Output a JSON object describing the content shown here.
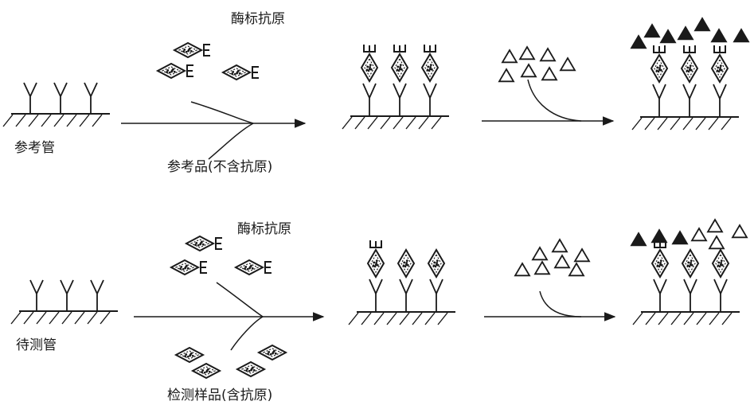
{
  "top_row": {
    "tube_label": "参考管",
    "enzyme_label": "酶标抗原",
    "sample_label": "参考品(不含抗原)"
  },
  "bottom_row": {
    "tube_label": "待测管",
    "enzyme_label": "酶标抗原",
    "sample_label": "检测样品(含抗原)"
  },
  "colors": {
    "ink": "#1a1a1a",
    "background": "#ffffff"
  },
  "icons": {
    "antibody": "Y-shape",
    "enzyme_labeled_antigen": "dotted-diamond-with-E",
    "sample_antigen": "dotted-diamond",
    "substrate": "open-triangle",
    "product": "filled-triangle",
    "solid_phase": "hatched-surface"
  }
}
